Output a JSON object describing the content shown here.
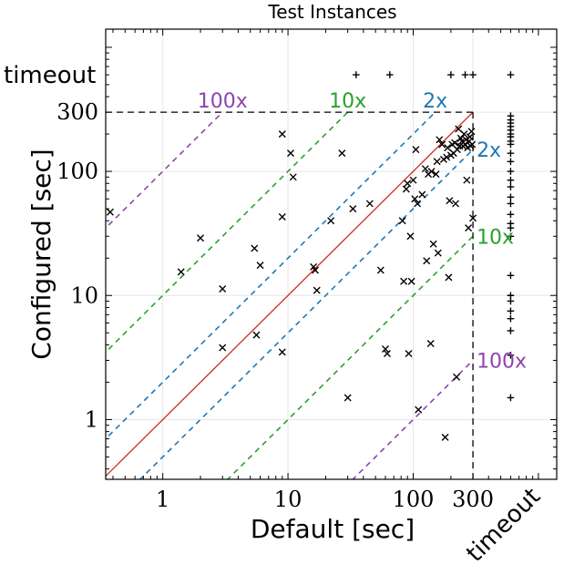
{
  "chart_data": {
    "type": "scatter",
    "title": "Test Instances",
    "xlabel": "Default [sec]",
    "ylabel": "Configured [sec]",
    "x_scale": "log",
    "y_scale": "log",
    "xlim": [
      0.35,
      1400
    ],
    "ylim": [
      0.33,
      1400
    ],
    "x_ticks": [
      {
        "value": 1,
        "label": "1"
      },
      {
        "value": 10,
        "label": "10"
      },
      {
        "value": 100,
        "label": "100"
      },
      {
        "value": 300,
        "label": "300"
      }
    ],
    "y_ticks": [
      {
        "value": 1,
        "label": "1"
      },
      {
        "value": 10,
        "label": "10"
      },
      {
        "value": 100,
        "label": "100"
      },
      {
        "value": 300,
        "label": "300"
      }
    ],
    "timeout_label": "timeout",
    "timeout_position": 600,
    "cutoff": 300,
    "grid": true,
    "colors": {
      "diag": "#d62728",
      "x2": "#1f77b4",
      "x10": "#2ca02c",
      "x100": "#8e44ad"
    },
    "guide_labels": [
      {
        "factor": 100,
        "side": "upper",
        "label": "100x",
        "color_key": "x100"
      },
      {
        "factor": 10,
        "side": "upper",
        "label": "10x",
        "color_key": "x10"
      },
      {
        "factor": 2,
        "side": "upper",
        "label": "2x",
        "color_key": "x2"
      },
      {
        "factor": 2,
        "side": "lower",
        "label": "2x",
        "color_key": "x2"
      },
      {
        "factor": 10,
        "side": "lower",
        "label": "10x",
        "color_key": "x10"
      },
      {
        "factor": 100,
        "side": "lower",
        "label": "100x",
        "color_key": "x100"
      }
    ],
    "series": [
      {
        "marker": "x",
        "points": [
          [
            0.38,
            47
          ],
          [
            1.4,
            15.5
          ],
          [
            2.0,
            29
          ],
          [
            3.0,
            11.3
          ],
          [
            3.0,
            3.8
          ],
          [
            5.4,
            24
          ],
          [
            5.6,
            4.8
          ],
          [
            6.0,
            17.5
          ],
          [
            9.0,
            200
          ],
          [
            9.0,
            43
          ],
          [
            9.0,
            3.5
          ],
          [
            10.5,
            140
          ],
          [
            11,
            90
          ],
          [
            16,
            17
          ],
          [
            16.5,
            16
          ],
          [
            17,
            11
          ],
          [
            22,
            40
          ],
          [
            27,
            140
          ],
          [
            30,
            1.5
          ],
          [
            33,
            50
          ],
          [
            45,
            55
          ],
          [
            55,
            16
          ],
          [
            60,
            3.7
          ],
          [
            62,
            3.4
          ],
          [
            82,
            40
          ],
          [
            84,
            13
          ],
          [
            88,
            72
          ],
          [
            90,
            80
          ],
          [
            92,
            3.4
          ],
          [
            95,
            30
          ],
          [
            97,
            13
          ],
          [
            100,
            85
          ],
          [
            103,
            60
          ],
          [
            105,
            150
          ],
          [
            108,
            55
          ],
          [
            110,
            1.2
          ],
          [
            118,
            65
          ],
          [
            125,
            105
          ],
          [
            128,
            19
          ],
          [
            132,
            95
          ],
          [
            138,
            4.1
          ],
          [
            140,
            100
          ],
          [
            145,
            26
          ],
          [
            152,
            95
          ],
          [
            155,
            120
          ],
          [
            158,
            22
          ],
          [
            162,
            180
          ],
          [
            170,
            165
          ],
          [
            175,
            125
          ],
          [
            180,
            0.72
          ],
          [
            185,
            130
          ],
          [
            188,
            155
          ],
          [
            192,
            14
          ],
          [
            195,
            58
          ],
          [
            200,
            135
          ],
          [
            205,
            165
          ],
          [
            210,
            140
          ],
          [
            215,
            170
          ],
          [
            218,
            55
          ],
          [
            222,
            2.2
          ],
          [
            225,
            150
          ],
          [
            230,
            220
          ],
          [
            235,
            160
          ],
          [
            240,
            185
          ],
          [
            245,
            175
          ],
          [
            250,
            160
          ],
          [
            255,
            200
          ],
          [
            260,
            165
          ],
          [
            264,
            180
          ],
          [
            268,
            85
          ],
          [
            272,
            155
          ],
          [
            276,
            35
          ],
          [
            280,
            175
          ],
          [
            284,
            190
          ],
          [
            288,
            160
          ],
          [
            292,
            210
          ],
          [
            296,
            165
          ],
          [
            300,
            42
          ]
        ]
      },
      {
        "marker": "+",
        "points": [
          [
            35,
            600
          ],
          [
            65,
            600
          ],
          [
            200,
            600
          ],
          [
            260,
            600
          ],
          [
            300,
            600
          ],
          [
            600,
            600
          ],
          [
            600,
            280
          ],
          [
            600,
            260
          ],
          [
            600,
            245
          ],
          [
            600,
            230
          ],
          [
            600,
            215
          ],
          [
            600,
            200
          ],
          [
            600,
            190
          ],
          [
            600,
            175
          ],
          [
            600,
            165
          ],
          [
            600,
            140
          ],
          [
            600,
            120
          ],
          [
            600,
            100
          ],
          [
            600,
            85
          ],
          [
            600,
            75
          ],
          [
            600,
            62
          ],
          [
            600,
            55
          ],
          [
            600,
            45
          ],
          [
            600,
            38
          ],
          [
            600,
            35
          ],
          [
            600,
            30
          ],
          [
            600,
            14.5
          ],
          [
            600,
            10
          ],
          [
            600,
            9
          ],
          [
            600,
            7.5
          ],
          [
            600,
            6.5
          ],
          [
            600,
            5.2
          ],
          [
            600,
            3.3
          ],
          [
            600,
            1.5
          ]
        ]
      }
    ]
  }
}
